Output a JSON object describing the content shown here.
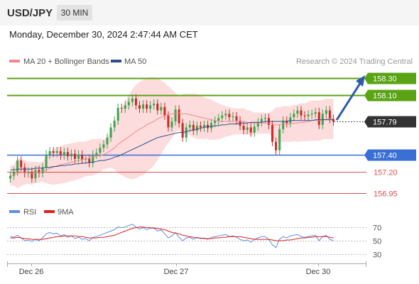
{
  "header": {
    "symbol": "USD/JPY",
    "timeframe": "30 MIN"
  },
  "timestamp": "Monday, December 30, 2024 2:47:44 AM CET",
  "legend": {
    "ma20": "MA 20 + Bollinger Bands",
    "ma50": "MA 50",
    "credit": "Research © 2024 Trading Central"
  },
  "colors": {
    "up": "#3fa34d",
    "down": "#cc2a2a",
    "ma50": "#2c4f8f",
    "ma20": "#f08a8a",
    "band": "#fbd6d6",
    "resistance": "#5aa313",
    "support_blue": "#3a6fd6",
    "support_red": "#d94f4f",
    "current": "#333333",
    "rsi": "#5b8fe0",
    "rsi_ma": "#e02020",
    "arrow": "#2a5caa"
  },
  "chart_data": {
    "type": "candlestick",
    "x_labels": [
      "Dec 26",
      "Dec 27",
      "Dec 30"
    ],
    "y_range": [
      156.88,
      158.4
    ],
    "levels": [
      {
        "label": "158.30",
        "value": 158.3,
        "kind": "resistance"
      },
      {
        "label": "158.10",
        "value": 158.1,
        "kind": "resistance"
      },
      {
        "label": "157.79",
        "value": 157.79,
        "kind": "current"
      },
      {
        "label": "157.40",
        "value": 157.4,
        "kind": "support"
      },
      {
        "label": "157.20",
        "value": 157.2,
        "kind": "minor"
      },
      {
        "label": "156.95",
        "value": 156.95,
        "kind": "minor"
      }
    ],
    "closes": [
      157.15,
      157.2,
      157.33,
      157.25,
      157.18,
      157.2,
      157.12,
      157.22,
      157.18,
      157.25,
      157.4,
      157.44,
      157.42,
      157.44,
      157.39,
      157.43,
      157.38,
      157.41,
      157.35,
      157.4,
      157.34,
      157.35,
      157.3,
      157.4,
      157.42,
      157.48,
      157.52,
      157.6,
      157.72,
      157.8,
      157.95,
      157.94,
      157.98,
      158.02,
      158.06,
      157.98,
      157.94,
      157.99,
      157.94,
      157.98,
      158.0,
      157.92,
      157.96,
      157.86,
      157.72,
      157.79,
      157.93,
      157.77,
      157.6,
      157.72,
      157.75,
      157.68,
      157.74,
      157.72,
      157.75,
      157.71,
      157.77,
      157.8,
      157.83,
      157.86,
      157.88,
      157.84,
      157.85,
      157.8,
      157.74,
      157.69,
      157.72,
      157.66,
      157.73,
      157.78,
      157.82,
      157.83,
      157.75,
      157.55,
      157.45,
      157.7,
      157.8,
      157.77,
      157.84,
      157.88,
      157.92,
      157.86,
      157.85,
      157.87,
      157.88,
      157.9,
      157.75,
      157.88,
      157.92,
      157.82,
      157.79
    ],
    "ma20": [
      157.15,
      157.16,
      157.18,
      157.19,
      157.19,
      157.19,
      157.18,
      157.19,
      157.19,
      157.2,
      157.22,
      157.24,
      157.25,
      157.27,
      157.28,
      157.29,
      157.3,
      157.31,
      157.32,
      157.33,
      157.34,
      157.35,
      157.36,
      157.37,
      157.38,
      157.39,
      157.4,
      157.42,
      157.45,
      157.48,
      157.52,
      157.55,
      157.58,
      157.61,
      157.64,
      157.67,
      157.7,
      157.72,
      157.75,
      157.77,
      157.79,
      157.82,
      157.84,
      157.86,
      157.87,
      157.88,
      157.89,
      157.89,
      157.88,
      157.88,
      157.87,
      157.86,
      157.85,
      157.84,
      157.83,
      157.82,
      157.81,
      157.8,
      157.79,
      157.79,
      157.79,
      157.79,
      157.79,
      157.79,
      157.79,
      157.79,
      157.78,
      157.77,
      157.77,
      157.77,
      157.77,
      157.77,
      157.77,
      157.76,
      157.75,
      157.75,
      157.76,
      157.76,
      157.76,
      157.77,
      157.77,
      157.78,
      157.78,
      157.79,
      157.8,
      157.8,
      157.8,
      157.81,
      157.82,
      157.82,
      157.82
    ],
    "ma50": [
      157.22,
      157.22,
      157.23,
      157.23,
      157.23,
      157.23,
      157.23,
      157.24,
      157.24,
      157.24,
      157.25,
      157.25,
      157.26,
      157.26,
      157.27,
      157.27,
      157.28,
      157.28,
      157.29,
      157.29,
      157.3,
      157.3,
      157.31,
      157.31,
      157.32,
      157.33,
      157.33,
      157.34,
      157.35,
      157.37,
      157.38,
      157.4,
      157.42,
      157.44,
      157.46,
      157.48,
      157.5,
      157.52,
      157.54,
      157.56,
      157.58,
      157.6,
      157.61,
      157.62,
      157.63,
      157.64,
      157.65,
      157.66,
      157.66,
      157.67,
      157.68,
      157.69,
      157.7,
      157.71,
      157.72,
      157.73,
      157.73,
      157.74,
      157.74,
      157.75,
      157.75,
      157.76,
      157.76,
      157.76,
      157.77,
      157.77,
      157.77,
      157.78,
      157.78,
      157.78,
      157.78,
      157.79,
      157.79,
      157.79,
      157.79,
      157.79,
      157.79,
      157.79,
      157.8,
      157.8,
      157.8,
      157.8,
      157.8,
      157.8,
      157.8,
      157.81,
      157.81,
      157.81,
      157.81,
      157.81,
      157.81
    ],
    "forecast_arrow": {
      "from": 157.79,
      "to": 158.3
    },
    "rsi": {
      "label": "RSI",
      "ma_label": "9MA",
      "ticks": [
        "70",
        "50",
        "30"
      ],
      "y_range": [
        20,
        80
      ],
      "values": [
        56,
        55,
        58,
        54,
        50,
        51,
        49,
        52,
        50,
        54,
        60,
        62,
        60,
        61,
        57,
        59,
        55,
        57,
        53,
        55,
        52,
        53,
        50,
        55,
        56,
        58,
        60,
        62,
        64,
        66,
        70,
        69,
        70,
        72,
        74,
        70,
        67,
        69,
        66,
        68,
        69,
        64,
        66,
        60,
        54,
        57,
        62,
        55,
        50,
        54,
        55,
        52,
        55,
        53,
        54,
        52,
        55,
        56,
        57,
        58,
        59,
        56,
        57,
        55,
        52,
        50,
        51,
        48,
        52,
        54,
        56,
        56,
        52,
        44,
        40,
        52,
        56,
        54,
        57,
        58,
        59,
        56,
        55,
        56,
        57,
        58,
        50,
        56,
        58,
        52,
        50
      ],
      "ma": [
        54,
        54,
        55,
        54,
        53,
        53,
        52,
        52,
        52,
        52,
        53,
        54,
        55,
        56,
        56,
        57,
        57,
        57,
        57,
        56,
        56,
        55,
        54,
        54,
        54,
        55,
        55,
        56,
        57,
        58,
        60,
        62,
        64,
        66,
        68,
        69,
        70,
        70,
        69,
        69,
        68,
        68,
        67,
        66,
        64,
        62,
        61,
        60,
        58,
        57,
        56,
        55,
        54,
        54,
        53,
        53,
        53,
        54,
        54,
        55,
        55,
        56,
        56,
        56,
        56,
        55,
        54,
        53,
        52,
        52,
        52,
        52,
        52,
        51,
        50,
        50,
        50,
        51,
        51,
        52,
        53,
        54,
        54,
        55,
        55,
        56,
        56,
        56,
        56,
        55,
        54
      ]
    }
  }
}
